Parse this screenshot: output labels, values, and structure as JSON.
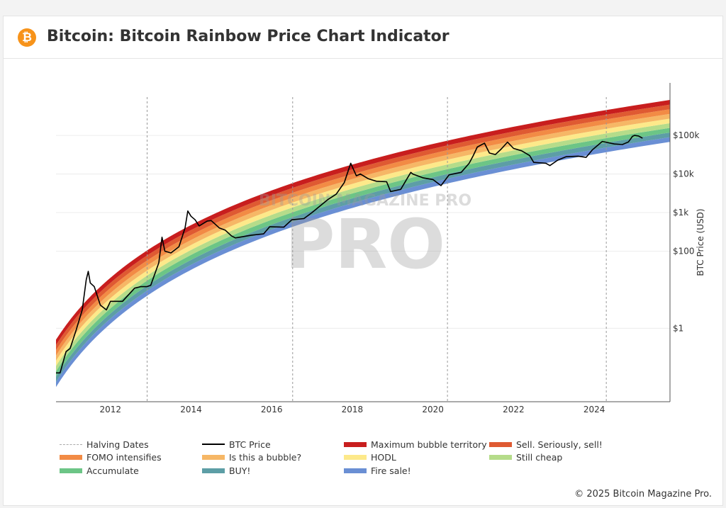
{
  "header": {
    "title": "Bitcoin: Bitcoin Rainbow Price Chart Indicator",
    "icon": "bitcoin-icon",
    "icon_glyph": "₿"
  },
  "watermark": "BITCOIN MAGAZINE PRO",
  "footer": {
    "copyright": "© 2025 Bitcoin Magazine Pro."
  },
  "chart_data": {
    "type": "line",
    "title": "",
    "xlabel": "",
    "ylabel": "BTC Price (USD)",
    "y_scale": "log",
    "y_axis_side": "right",
    "xlim": [
      2010.65,
      2025.88
    ],
    "ylim": [
      0.0125,
      2300000
    ],
    "x_ticks": [
      {
        "v": 2012,
        "label": "2012"
      },
      {
        "v": 2014,
        "label": "2014"
      },
      {
        "v": 2016,
        "label": "2016"
      },
      {
        "v": 2018,
        "label": "2018"
      },
      {
        "v": 2020,
        "label": "2020"
      },
      {
        "v": 2022,
        "label": "2022"
      },
      {
        "v": 2024,
        "label": "2024"
      }
    ],
    "y_ticks": [
      {
        "v": 1,
        "label": "$1"
      },
      {
        "v": 100,
        "label": "$100"
      },
      {
        "v": 1000,
        "label": "$1k"
      },
      {
        "v": 10000,
        "label": "$10k"
      },
      {
        "v": 100000,
        "label": "$100k"
      }
    ],
    "grid": true,
    "legend_position": "bottom",
    "halving_dates": [
      2012.91,
      2016.52,
      2020.36,
      2024.3
    ],
    "bands": [
      {
        "name": "Fire sale!",
        "color": "#6a8fd4"
      },
      {
        "name": "BUY!",
        "color": "#5d9ea6"
      },
      {
        "name": "Accumulate",
        "color": "#6cc586"
      },
      {
        "name": "Still cheap",
        "color": "#b5dc8a"
      },
      {
        "name": "HODL",
        "color": "#fde98a"
      },
      {
        "name": "Is this a bubble?",
        "color": "#f6b766"
      },
      {
        "name": "FOMO intensifies",
        "color": "#f28b45"
      },
      {
        "name": "Sell. Seriously, sell!",
        "color": "#df5a32"
      },
      {
        "name": "Maximum bubble territory",
        "color": "#c81e1e"
      }
    ],
    "series": [
      {
        "name": "BTC Price",
        "color": "#000000",
        "points": [
          [
            2010.6,
            0.07
          ],
          [
            2010.75,
            0.07
          ],
          [
            2010.9,
            0.25
          ],
          [
            2011.0,
            0.3
          ],
          [
            2011.15,
            0.9
          ],
          [
            2011.3,
            3
          ],
          [
            2011.4,
            18
          ],
          [
            2011.45,
            30
          ],
          [
            2011.5,
            15
          ],
          [
            2011.6,
            12
          ],
          [
            2011.75,
            4
          ],
          [
            2011.9,
            3
          ],
          [
            2012.0,
            5
          ],
          [
            2012.3,
            5
          ],
          [
            2012.6,
            11
          ],
          [
            2012.75,
            12
          ],
          [
            2012.9,
            12
          ],
          [
            2013.0,
            13
          ],
          [
            2013.2,
            50
          ],
          [
            2013.28,
            230
          ],
          [
            2013.35,
            100
          ],
          [
            2013.5,
            90
          ],
          [
            2013.7,
            130
          ],
          [
            2013.85,
            400
          ],
          [
            2013.92,
            1100
          ],
          [
            2014.0,
            800
          ],
          [
            2014.1,
            650
          ],
          [
            2014.2,
            450
          ],
          [
            2014.4,
            600
          ],
          [
            2014.5,
            620
          ],
          [
            2014.7,
            400
          ],
          [
            2014.85,
            350
          ],
          [
            2015.0,
            250
          ],
          [
            2015.1,
            220
          ],
          [
            2015.5,
            260
          ],
          [
            2015.8,
            280
          ],
          [
            2015.95,
            430
          ],
          [
            2016.3,
            420
          ],
          [
            2016.5,
            650
          ],
          [
            2016.8,
            700
          ],
          [
            2017.0,
            1000
          ],
          [
            2017.4,
            2200
          ],
          [
            2017.6,
            3000
          ],
          [
            2017.8,
            6000
          ],
          [
            2017.96,
            19000
          ],
          [
            2018.1,
            9000
          ],
          [
            2018.2,
            10000
          ],
          [
            2018.4,
            7500
          ],
          [
            2018.6,
            6500
          ],
          [
            2018.85,
            6300
          ],
          [
            2018.95,
            3500
          ],
          [
            2019.2,
            4000
          ],
          [
            2019.45,
            11000
          ],
          [
            2019.5,
            10000
          ],
          [
            2019.75,
            8000
          ],
          [
            2020.0,
            7200
          ],
          [
            2020.2,
            5000
          ],
          [
            2020.4,
            9500
          ],
          [
            2020.7,
            11000
          ],
          [
            2020.9,
            19000
          ],
          [
            2021.0,
            30000
          ],
          [
            2021.1,
            50000
          ],
          [
            2021.28,
            63000
          ],
          [
            2021.4,
            35000
          ],
          [
            2021.55,
            32000
          ],
          [
            2021.7,
            45000
          ],
          [
            2021.85,
            67000
          ],
          [
            2022.0,
            46000
          ],
          [
            2022.2,
            40000
          ],
          [
            2022.4,
            30000
          ],
          [
            2022.5,
            20000
          ],
          [
            2022.8,
            19000
          ],
          [
            2022.9,
            16500
          ],
          [
            2023.1,
            23000
          ],
          [
            2023.3,
            28000
          ],
          [
            2023.6,
            29000
          ],
          [
            2023.8,
            27000
          ],
          [
            2023.95,
            42000
          ],
          [
            2024.2,
            70000
          ],
          [
            2024.5,
            60000
          ],
          [
            2024.7,
            58000
          ],
          [
            2024.85,
            68000
          ],
          [
            2024.95,
            95000
          ],
          [
            2025.0,
            100000
          ],
          [
            2025.1,
            97000
          ],
          [
            2025.2,
            85000
          ]
        ]
      }
    ],
    "legend": [
      {
        "label": "Halving Dates",
        "style": "dashed",
        "color": "#aaaaaa"
      },
      {
        "label": "BTC Price",
        "style": "line",
        "color": "#000000"
      },
      {
        "label": "Maximum bubble territory",
        "color": "#c81e1e"
      },
      {
        "label": "Sell. Seriously, sell!",
        "color": "#df5a32"
      },
      {
        "label": "FOMO intensifies",
        "color": "#f28b45"
      },
      {
        "label": "Is this a bubble?",
        "color": "#f6b766"
      },
      {
        "label": "HODL",
        "color": "#fde98a"
      },
      {
        "label": "Still cheap",
        "color": "#b5dc8a"
      },
      {
        "label": "Accumulate",
        "color": "#6cc586"
      },
      {
        "label": "BUY!",
        "color": "#5d9ea6"
      },
      {
        "label": "Fire sale!",
        "color": "#6a8fd4"
      }
    ]
  }
}
